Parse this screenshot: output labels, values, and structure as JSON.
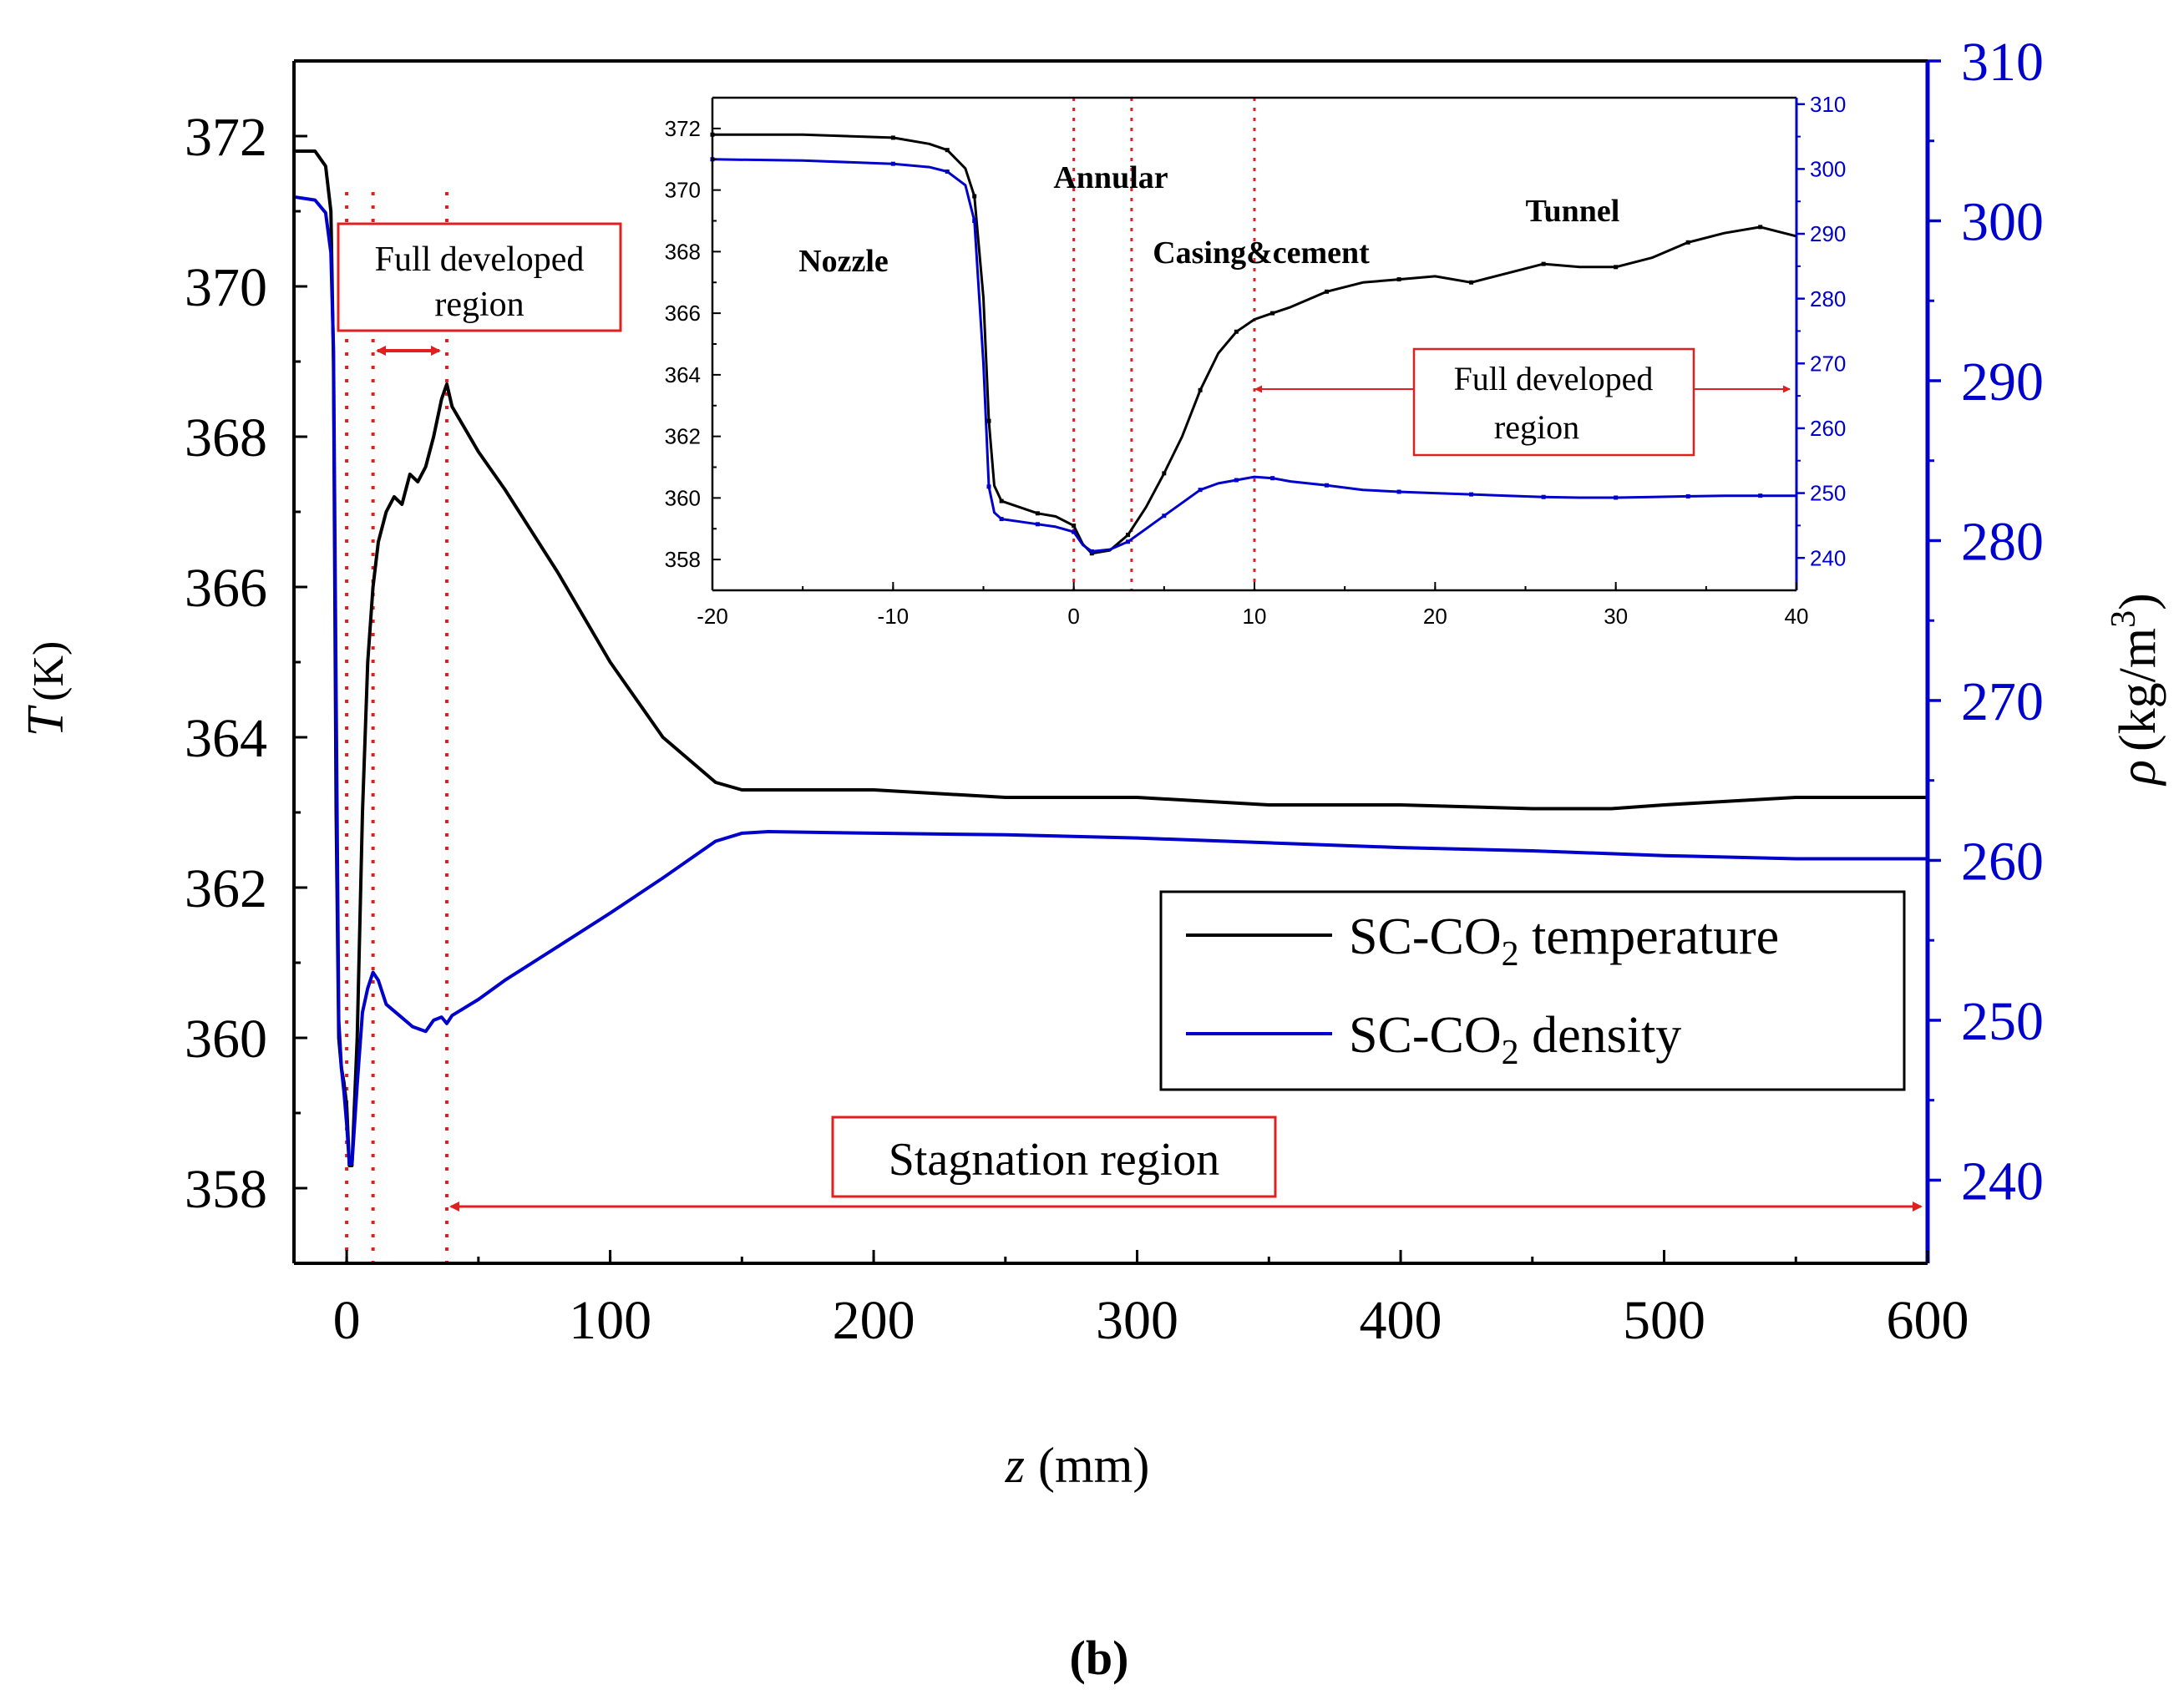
{
  "chart_data": [
    {
      "type": "line",
      "title": "",
      "xlabel": {
        "symbol": "z",
        "unit": "(mm)"
      },
      "ylabel_left": {
        "symbol": "T",
        "unit": "(K)"
      },
      "ylabel_right": {
        "symbol": "ρ",
        "unit": "(kg/m",
        "sup": "3",
        "close": ")"
      },
      "xlim": [
        -20,
        600
      ],
      "ylim_left": [
        357,
        373
      ],
      "ylim_right": [
        234.8,
        310
      ],
      "xticks": [
        "0",
        "100",
        "200",
        "300",
        "400",
        "500",
        "600"
      ],
      "yticks_left": [
        "358",
        "360",
        "362",
        "364",
        "366",
        "368",
        "370",
        "372"
      ],
      "yticks_right": [
        "240",
        "250",
        "260",
        "270",
        "280",
        "290",
        "300",
        "310"
      ],
      "series": [
        {
          "name": "SC-CO2 temperature",
          "legend_prefix": "SC-CO",
          "legend_sub": "2",
          "legend_suffix": " temperature",
          "color": "#000000",
          "axis": "left",
          "x": [
            -20,
            -12,
            -8,
            -6,
            -5,
            -4,
            -3,
            -2,
            -1,
            0,
            1,
            2,
            4,
            6,
            8,
            10,
            12,
            15,
            18,
            21,
            24,
            27,
            30,
            33,
            36,
            38,
            40,
            45,
            50,
            60,
            80,
            100,
            120,
            140,
            150,
            160,
            200,
            250,
            300,
            350,
            400,
            450,
            480,
            500,
            550,
            600
          ],
          "y": [
            371.8,
            371.8,
            371.6,
            371.0,
            369.0,
            363.0,
            360.0,
            359.6,
            359.4,
            359.1,
            358.3,
            358.3,
            360.0,
            363.0,
            365.0,
            366.0,
            366.6,
            367.0,
            367.2,
            367.1,
            367.5,
            367.4,
            367.6,
            368.0,
            368.5,
            368.7,
            368.4,
            368.1,
            367.8,
            367.3,
            366.2,
            365.0,
            364.0,
            363.4,
            363.3,
            363.3,
            363.3,
            363.2,
            363.2,
            363.1,
            363.1,
            363.05,
            363.05,
            363.1,
            363.2,
            363.2
          ]
        },
        {
          "name": "SC-CO2 density",
          "legend_prefix": "SC-CO",
          "legend_sub": "2",
          "legend_suffix": " density",
          "color": "#0000cc",
          "axis": "right",
          "x": [
            -20,
            -12,
            -8,
            -6,
            -5,
            -4,
            -3,
            -2,
            -1,
            0,
            1,
            2,
            4,
            6,
            8,
            10,
            12,
            15,
            20,
            25,
            30,
            33,
            36,
            38,
            40,
            45,
            50,
            60,
            80,
            100,
            120,
            140,
            150,
            160,
            200,
            250,
            300,
            350,
            400,
            450,
            500,
            550,
            600
          ],
          "y": [
            301.5,
            301.3,
            300.5,
            298.0,
            292.0,
            270.0,
            250.0,
            247.0,
            245.5,
            243.5,
            241.0,
            241.0,
            246.0,
            250.5,
            252.0,
            253.0,
            252.5,
            251.0,
            250.3,
            249.6,
            249.3,
            250.0,
            250.2,
            249.8,
            250.3,
            250.8,
            251.3,
            252.5,
            254.6,
            256.7,
            258.9,
            261.2,
            261.7,
            261.8,
            261.7,
            261.6,
            261.4,
            261.1,
            260.8,
            260.6,
            260.3,
            260.1,
            260.1
          ]
        }
      ],
      "dotted_lines_x": [
        0,
        10,
        38
      ],
      "annotations": {
        "full_developed": [
          "Full developed",
          "region"
        ],
        "stagnation": "Stagnation region"
      },
      "legend_position": "center-right"
    },
    {
      "type": "line",
      "role": "inset",
      "xlim": [
        -20,
        40
      ],
      "ylim_left": [
        357,
        373
      ],
      "ylim_right": [
        235,
        311
      ],
      "xticks": [
        "-20",
        "-10",
        "0",
        "10",
        "20",
        "30",
        "40"
      ],
      "yticks_left": [
        "358",
        "360",
        "362",
        "364",
        "366",
        "368",
        "370",
        "372"
      ],
      "yticks_right": [
        "240",
        "250",
        "260",
        "270",
        "280",
        "290",
        "300",
        "310"
      ],
      "series": [
        {
          "name": "SC-CO2 temperature",
          "color": "#000000",
          "axis": "left",
          "x": [
            -20,
            -15,
            -10,
            -8,
            -7,
            -6,
            -5.5,
            -5,
            -4.7,
            -4.4,
            -4,
            -3,
            -2,
            -1,
            0,
            0.5,
            1,
            2,
            3,
            4,
            5,
            6,
            7,
            8,
            9,
            10,
            11,
            12,
            14,
            16,
            18,
            20,
            22,
            24,
            26,
            28,
            30,
            32,
            34,
            36,
            38,
            40
          ],
          "y": [
            371.8,
            371.8,
            371.7,
            371.5,
            371.3,
            370.7,
            369.8,
            366.5,
            362.5,
            360.4,
            359.9,
            359.7,
            359.5,
            359.4,
            359.1,
            358.5,
            358.2,
            358.3,
            358.8,
            359.7,
            360.8,
            362.0,
            363.5,
            364.7,
            365.4,
            365.8,
            366.0,
            366.2,
            366.7,
            367.0,
            367.1,
            367.2,
            367.0,
            367.3,
            367.6,
            367.5,
            367.5,
            367.8,
            368.3,
            368.6,
            368.8,
            368.5
          ]
        },
        {
          "name": "SC-CO2 density",
          "color": "#0000cc",
          "axis": "right",
          "x": [
            -20,
            -15,
            -10,
            -8,
            -7,
            -6,
            -5.5,
            -5,
            -4.7,
            -4.4,
            -4,
            -3,
            -2,
            -1,
            0,
            0.5,
            1,
            2,
            3,
            4,
            5,
            6,
            7,
            8,
            9,
            10,
            11,
            12,
            14,
            16,
            18,
            20,
            22,
            24,
            26,
            28,
            30,
            32,
            34,
            36,
            38,
            40
          ],
          "y": [
            301.5,
            301.3,
            300.8,
            300.3,
            299.6,
            297.5,
            292.0,
            270.0,
            251.0,
            247.0,
            246.0,
            245.6,
            245.2,
            244.8,
            244.0,
            242.0,
            241.0,
            241.3,
            242.5,
            244.5,
            246.5,
            248.5,
            250.5,
            251.5,
            252.0,
            252.5,
            252.3,
            251.8,
            251.2,
            250.5,
            250.2,
            250.0,
            249.8,
            249.6,
            249.4,
            249.3,
            249.3,
            249.4,
            249.5,
            249.6,
            249.6,
            249.6
          ]
        }
      ],
      "dotted_lines_x": [
        0,
        3.2,
        10
      ],
      "region_labels": {
        "nozzle": "Nozzle",
        "annular": "Annular",
        "casing": "Casing&cement",
        "tunnel": "Tunnel"
      },
      "annotations": {
        "full_developed": [
          "Full developed",
          "region"
        ]
      }
    }
  ],
  "caption": "(b)"
}
